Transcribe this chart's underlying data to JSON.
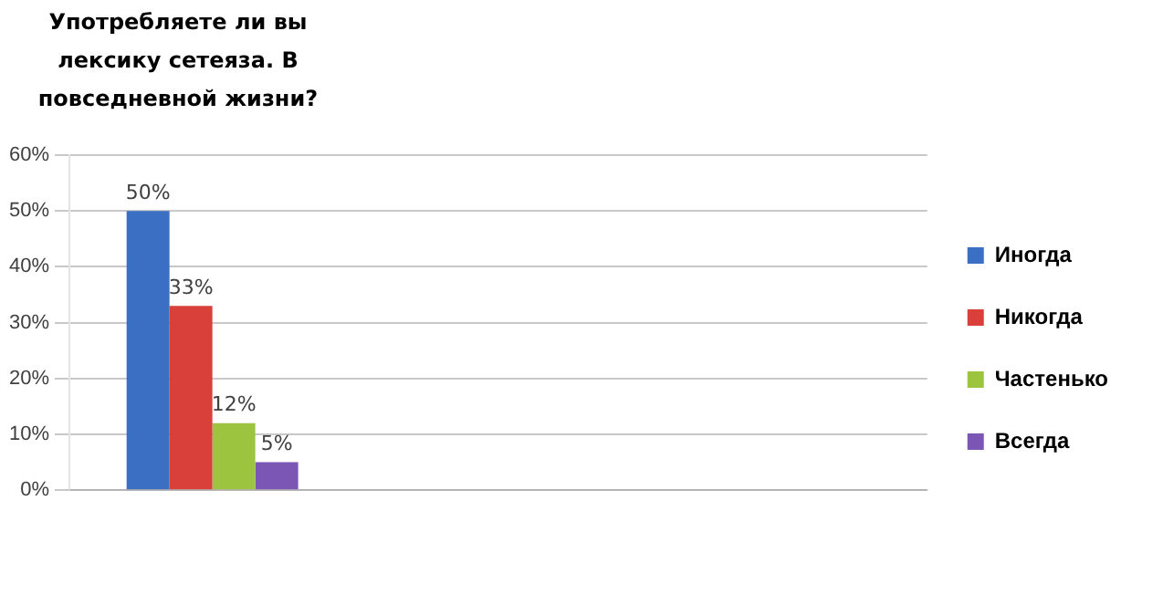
{
  "chart_data": {
    "type": "bar",
    "title": "Употребляете ли вы лексику сетеяза. В повседневной жизни?",
    "categories": [
      null,
      null,
      null
    ],
    "series": [
      {
        "name": "Иногда",
        "color": "#3a6fc4",
        "values": [
          50,
          null,
          null
        ],
        "value_labels": [
          "50%",
          null,
          null
        ]
      },
      {
        "name": "Никогда",
        "color": "#d9403a",
        "values": [
          33,
          null,
          null
        ],
        "value_labels": [
          "33%",
          null,
          null
        ]
      },
      {
        "name": "Частенько",
        "color": "#9cc43e",
        "values": [
          12,
          null,
          null
        ],
        "value_labels": [
          "12%",
          null,
          null
        ]
      },
      {
        "name": "Всегда",
        "color": "#7b56b5",
        "values": [
          5,
          null,
          null
        ],
        "value_labels": [
          "5%",
          null,
          null
        ]
      }
    ],
    "ylim": [
      0,
      60
    ],
    "yticks": [
      {
        "value": 0,
        "label": "0%"
      },
      {
        "value": 10,
        "label": "10%"
      },
      {
        "value": 20,
        "label": "20%"
      },
      {
        "value": 30,
        "label": "30%"
      },
      {
        "value": 40,
        "label": "40%"
      },
      {
        "value": 50,
        "label": "50%"
      },
      {
        "value": 60,
        "label": "60%"
      }
    ],
    "grid": "y",
    "legend": "right"
  }
}
